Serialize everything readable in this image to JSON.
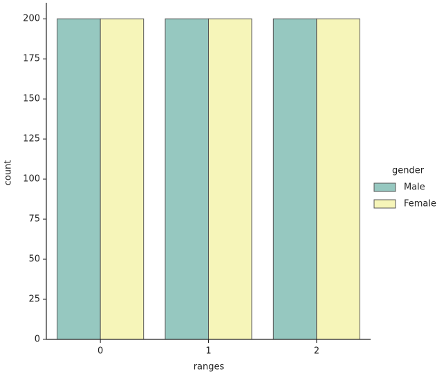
{
  "chart_data": {
    "type": "bar",
    "x_label": "ranges",
    "y_label": "count",
    "categories": [
      "0",
      "1",
      "2"
    ],
    "series": [
      {
        "name": "Male",
        "color": "#96c8c0",
        "values": [
          200,
          200,
          200
        ]
      },
      {
        "name": "Female",
        "color": "#f6f5b9",
        "values": [
          200,
          200,
          200
        ]
      }
    ],
    "legend_title": "gender",
    "legend": "right",
    "ylim": [
      0,
      210
    ],
    "yticks": [
      0,
      25,
      50,
      75,
      100,
      125,
      150,
      175,
      200
    ],
    "grid": false
  }
}
